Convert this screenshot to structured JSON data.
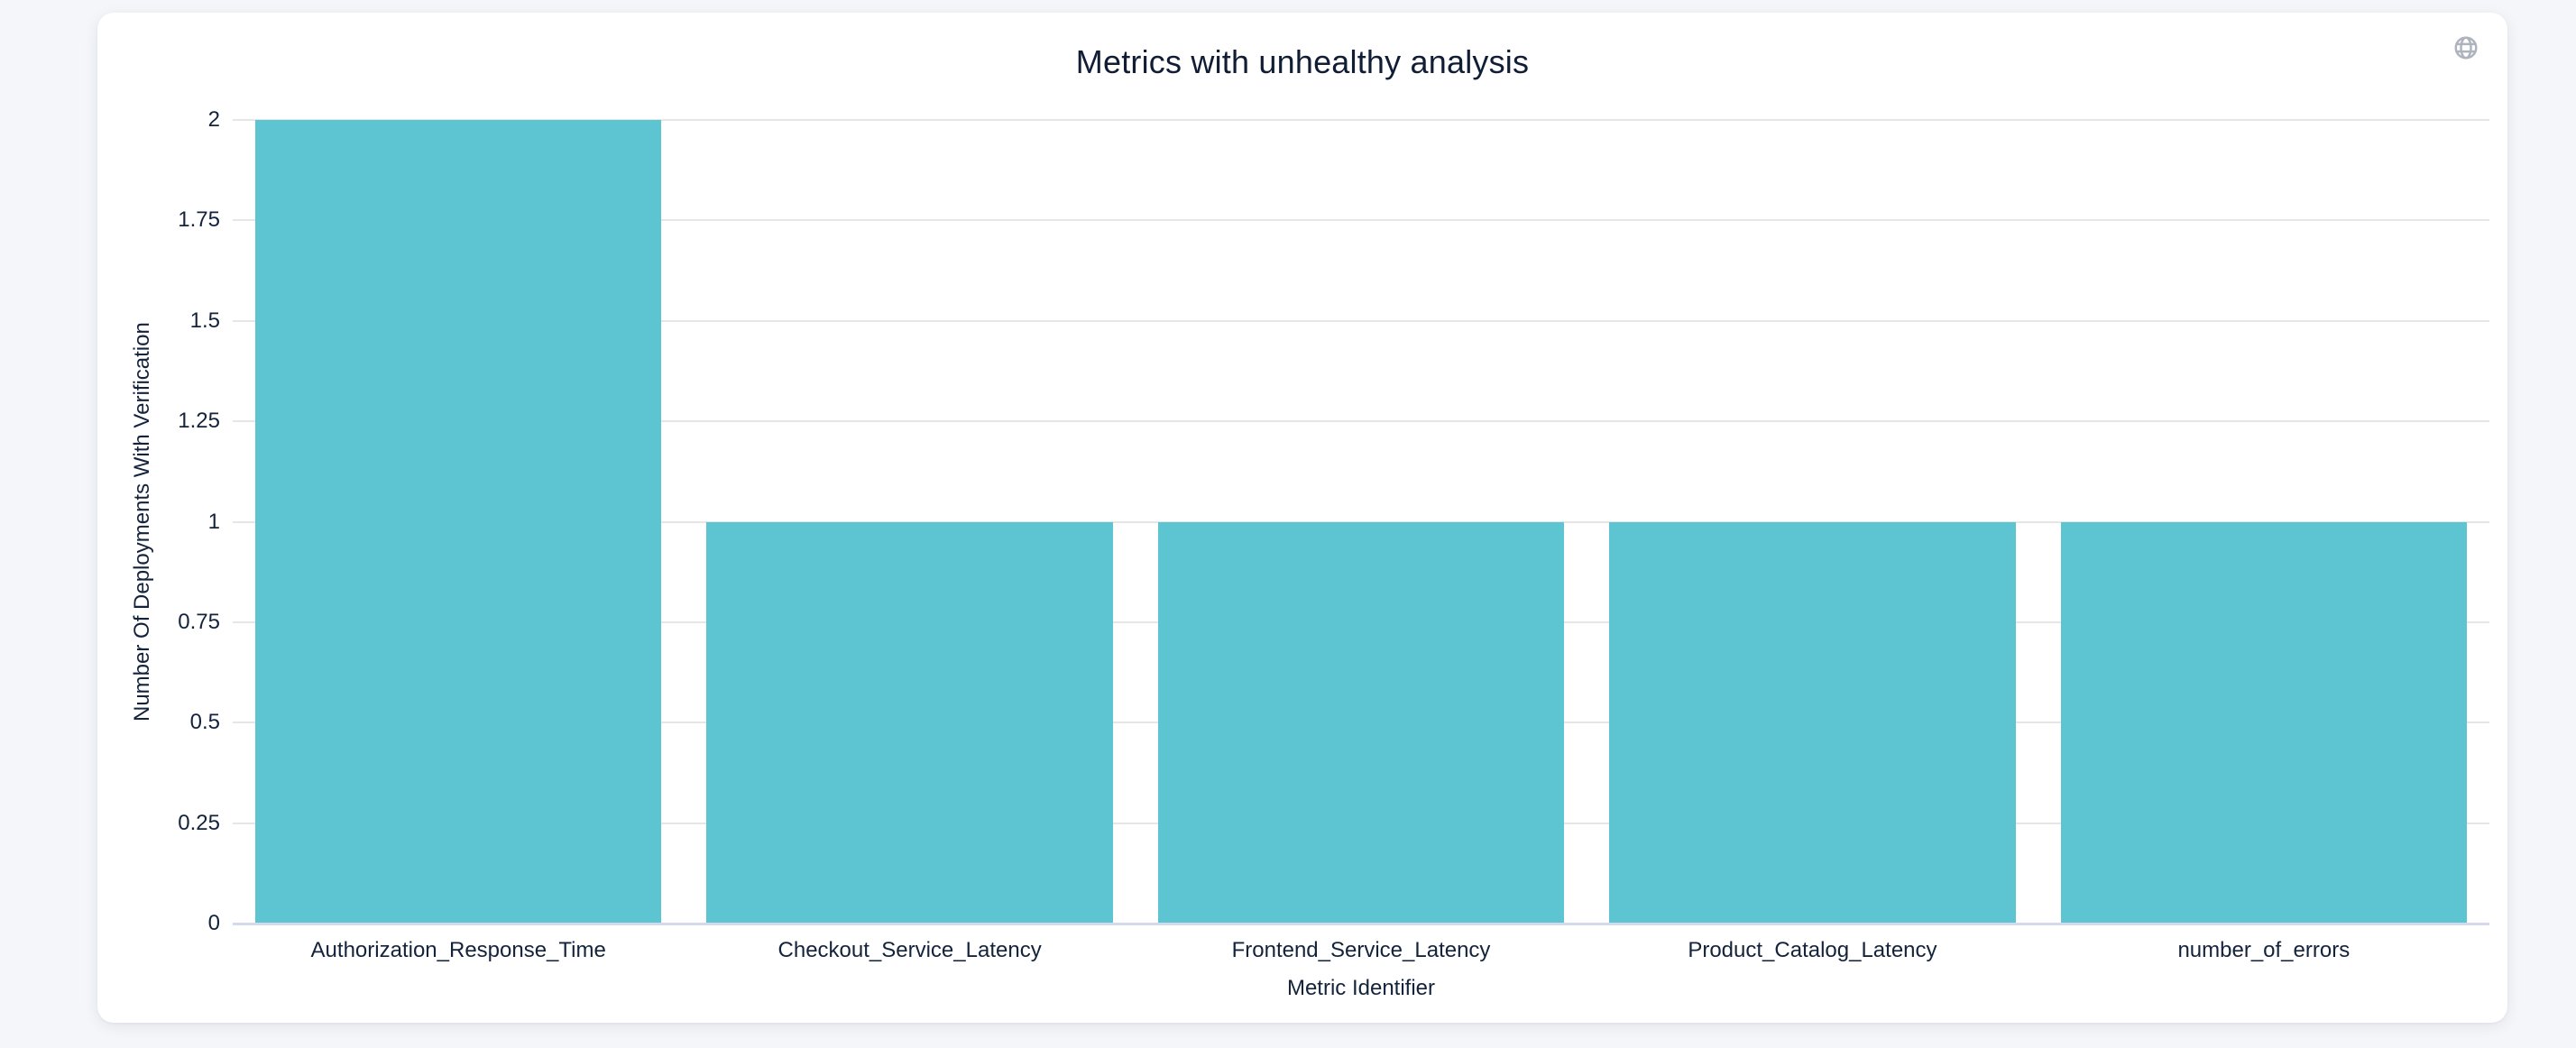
{
  "card": {
    "toolbar": {
      "globe_icon": "globe-icon"
    }
  },
  "chart_data": {
    "type": "bar",
    "title": "Metrics with unhealthy analysis",
    "categories": [
      "Authorization_Response_Time",
      "Checkout_Service_Latency",
      "Frontend_Service_Latency",
      "Product_Catalog_Latency",
      "number_of_errors"
    ],
    "values": [
      2,
      1,
      1,
      1,
      1
    ],
    "xlabel": "Metric Identifier",
    "ylabel": "Number Of Deployments With Verification",
    "ylim": [
      0,
      2
    ],
    "yticks": [
      0,
      0.25,
      0.5,
      0.75,
      1,
      1.25,
      1.5,
      1.75,
      2
    ],
    "grid": true,
    "legend_position": "none",
    "colors": {
      "bar": "#5cc5d1",
      "gridline": "#e6e6e6",
      "axis_line": "#d5d9ee",
      "label_text": "#14233c",
      "title_text": "#101d35",
      "icon": "#aeb4bd",
      "page_background": "#f4f6f9",
      "card_background": "#ffffff"
    }
  }
}
